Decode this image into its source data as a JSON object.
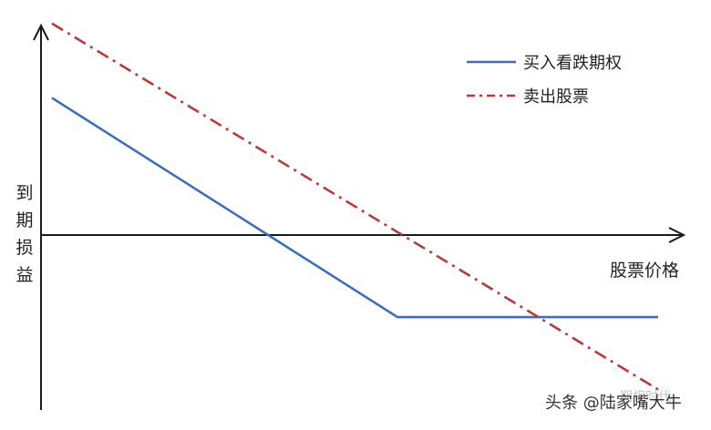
{
  "chart_data": {
    "type": "line",
    "title": "",
    "xlabel": "股票价格",
    "ylabel": "到期损益",
    "grid": false,
    "legend_position": "top-right",
    "xlim": [
      0,
      100
    ],
    "ylim": [
      -100,
      100
    ],
    "series": [
      {
        "name": "买入看跌期权",
        "color": "#3a6fbf",
        "style": "solid",
        "points": [
          [
            0,
            65
          ],
          [
            57,
            -41
          ],
          [
            100,
            -41
          ]
        ]
      },
      {
        "name": "卖出股票",
        "color": "#b83a3a",
        "style": "dash-dot",
        "points": [
          [
            0,
            101
          ],
          [
            100,
            -76
          ]
        ]
      }
    ]
  },
  "watermark": {
    "text": "头条 @陆家嘴大牛",
    "faint_text": "期权时代"
  }
}
